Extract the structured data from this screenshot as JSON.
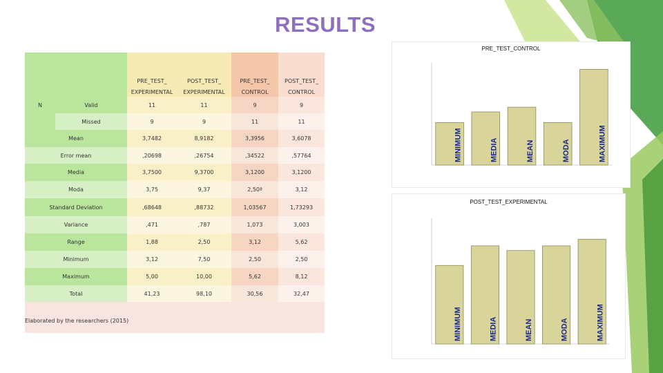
{
  "page": {
    "title": "RESULTS"
  },
  "table": {
    "headers": [
      {
        "line1": "PRE_TEST_",
        "line2": "EXPERIMENTAL"
      },
      {
        "line1": "POST_TEST_",
        "line2": "EXPERIMENTAL"
      },
      {
        "line1": "PRE_TEST_",
        "line2": "CONTROL"
      },
      {
        "line1": "POST_TEST_",
        "line2": "CONTROL"
      }
    ],
    "n_label": "N",
    "rows": [
      {
        "label": "Valid",
        "values": [
          "11",
          "11",
          "9",
          "9"
        ]
      },
      {
        "label": "Missed",
        "values": [
          "9",
          "9",
          "11",
          "11"
        ]
      },
      {
        "label": "Mean",
        "values": [
          "3,7482",
          "8,9182",
          "3,3956",
          "3,6078"
        ]
      },
      {
        "label": "Error mean",
        "values": [
          ",20698",
          ",26754",
          ",34522",
          ",57764"
        ]
      },
      {
        "label": "Media",
        "values": [
          "3,7500",
          "9,3700",
          "3,1200",
          "3,1200"
        ]
      },
      {
        "label": "Moda",
        "values": [
          "3,75",
          "9,37",
          "2,50ª",
          "3,12"
        ]
      },
      {
        "label": "Standard Deviation",
        "values": [
          ",68648",
          ",88732",
          "1,03567",
          "1,73293"
        ]
      },
      {
        "label": "Variance",
        "values": [
          ",471",
          ",787",
          "1,073",
          "3,003"
        ]
      },
      {
        "label": "Range",
        "values": [
          "1,88",
          "2,50",
          "3,12",
          "5,62"
        ]
      },
      {
        "label": "Minimum",
        "values": [
          "3,12",
          "7,50",
          "2,50",
          "2,50"
        ]
      },
      {
        "label": "Maximum",
        "values": [
          "5,00",
          "10,00",
          "5,62",
          "8,12"
        ]
      },
      {
        "label": "Total",
        "values": [
          "41,23",
          "98,10",
          "30,56",
          "32,47"
        ]
      }
    ],
    "note": "Elaborated by the researchers (2015)"
  },
  "chart_data": [
    {
      "type": "bar",
      "title": "PRE_TEST_CONTROL",
      "categories": [
        "MINIMUM",
        "MEDIA",
        "MEAN",
        "MODA",
        "MAXIMUM"
      ],
      "values": [
        2.5,
        3.12,
        3.4,
        2.5,
        5.62
      ],
      "ylim": [
        0,
        6
      ],
      "bar_color": "#d8d49a"
    },
    {
      "type": "bar",
      "title": "POST_TEST_EXPERIMENTAL",
      "categories": [
        "MINIMUM",
        "MEDIA",
        "MEAN",
        "MODA",
        "MAXIMUM"
      ],
      "values": [
        7.5,
        9.37,
        8.92,
        9.37,
        10.0
      ],
      "ylim": [
        0,
        12
      ],
      "bar_color": "#d8d49a"
    }
  ]
}
